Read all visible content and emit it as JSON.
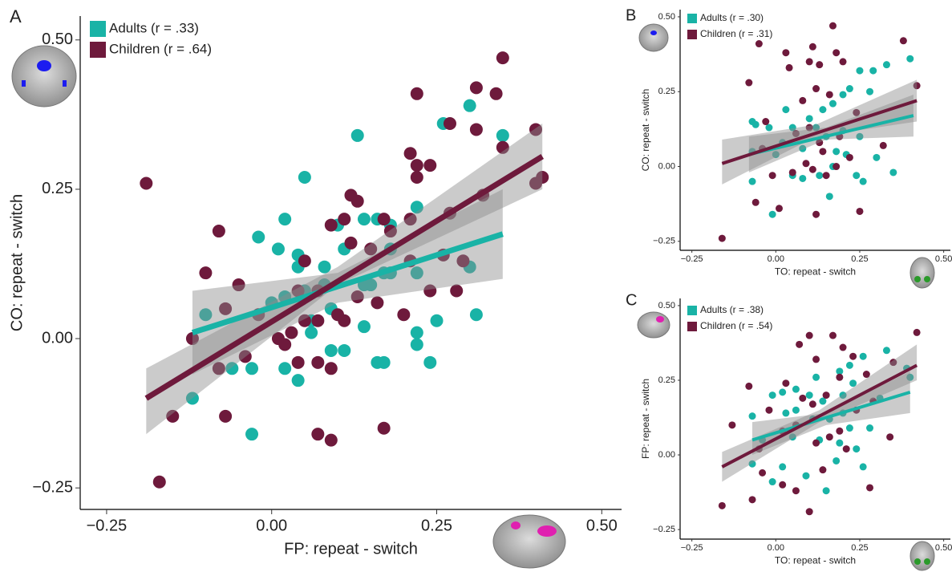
{
  "chart_data": [
    {
      "type": "scatter",
      "panel": "A",
      "x_label": "FP: repeat - switch",
      "y_label": "CO: repeat - switch",
      "xlim": [
        -0.29,
        0.53
      ],
      "ylim": [
        -0.286,
        0.54
      ],
      "xticks": [
        {
          "value": -0.25,
          "label": "−0.25"
        },
        {
          "value": 0,
          "label": "0.00"
        },
        {
          "value": 0.25,
          "label": "0.25"
        },
        {
          "value": 0.5,
          "label": "0.50"
        }
      ],
      "yticks": [
        {
          "value": -0.25,
          "label": "−0.25"
        },
        {
          "value": 0,
          "label": "0.00"
        },
        {
          "value": 0.25,
          "label": "0.25"
        },
        {
          "value": 0.5,
          "label": "0.50"
        }
      ],
      "series": [
        {
          "name": "Adults (r = .33)",
          "color": "#19b3a6",
          "x": [
            0.3,
            0.26,
            0.35,
            0.13,
            0.22,
            0.05,
            0.02,
            0.14,
            0.16,
            0.18,
            0.1,
            -0.02,
            0.01,
            0.04,
            0.11,
            0.18,
            0.04,
            0.08,
            0.3,
            0.22,
            0.17,
            -0.1,
            0.14,
            0.05,
            0.0,
            0.02,
            0.06,
            -0.03,
            0.02,
            0.04,
            0.06,
            0.09,
            0.11,
            0.14,
            0.16,
            0.17,
            0.22,
            0.22,
            0.24,
            0.25,
            0.31,
            0.18,
            -0.12,
            -0.03,
            0.09,
            0.08,
            0.15,
            -0.06
          ],
          "values": [
            0.39,
            0.36,
            0.34,
            0.34,
            0.22,
            0.27,
            0.2,
            0.2,
            0.2,
            0.19,
            0.19,
            0.17,
            0.15,
            0.14,
            0.15,
            0.15,
            0.12,
            0.12,
            0.12,
            0.11,
            0.11,
            0.04,
            0.09,
            0.08,
            0.06,
            0.07,
            0.03,
            -0.05,
            -0.05,
            -0.07,
            0.01,
            -0.02,
            -0.02,
            0.02,
            -0.04,
            -0.04,
            0.01,
            -0.01,
            -0.04,
            0.03,
            0.04,
            0.11,
            -0.1,
            -0.16,
            0.05,
            0.09,
            0.09,
            -0.05
          ],
          "fit": {
            "x": [
              -0.12,
              0.35
            ],
            "values": [
              0.01,
              0.175
            ]
          },
          "band": {
            "x": [
              -0.12,
              0.1,
              0.35
            ],
            "lower": [
              -0.06,
              0.06,
              0.1
            ],
            "upper": [
              0.08,
              0.11,
              0.25
            ]
          }
        },
        {
          "name": "Children (r = .64)",
          "color": "#6e1a3c",
          "x": [
            0.35,
            0.31,
            0.34,
            0.22,
            0.27,
            0.31,
            0.4,
            0.35,
            0.21,
            0.22,
            0.24,
            0.22,
            0.41,
            0.4,
            -0.19,
            0.32,
            0.12,
            0.13,
            0.27,
            0.21,
            0.11,
            0.09,
            0.17,
            0.18,
            -0.08,
            0.12,
            0.15,
            0.26,
            0.05,
            0.21,
            0.29,
            -0.1,
            -0.05,
            0.04,
            0.07,
            0.24,
            0.28,
            0.16,
            0.1,
            0.13,
            0.2,
            0.11,
            0.05,
            0.07,
            -0.07,
            -0.02,
            -0.12,
            0.02,
            0.04,
            0.07,
            0.09,
            -0.04,
            -0.08,
            -0.07,
            -0.15,
            0.07,
            0.09,
            0.17,
            -0.17,
            0.03,
            0.01
          ],
          "values": [
            0.47,
            0.42,
            0.41,
            0.41,
            0.36,
            0.35,
            0.35,
            0.32,
            0.31,
            0.29,
            0.29,
            0.27,
            0.27,
            0.26,
            0.26,
            0.24,
            0.24,
            0.23,
            0.21,
            0.2,
            0.2,
            0.19,
            0.2,
            0.18,
            0.18,
            0.16,
            0.15,
            0.14,
            0.13,
            0.13,
            0.13,
            0.11,
            0.09,
            0.08,
            0.08,
            0.08,
            0.08,
            0.06,
            0.04,
            0.07,
            0.04,
            0.03,
            0.03,
            0.03,
            0.05,
            0.04,
            0.0,
            -0.01,
            -0.04,
            -0.04,
            -0.05,
            -0.03,
            -0.05,
            -0.13,
            -0.13,
            -0.16,
            -0.17,
            -0.15,
            -0.24,
            0.01,
            0.0
          ],
          "fit": {
            "x": [
              -0.19,
              0.41
            ],
            "values": [
              -0.1,
              0.305
            ]
          },
          "band": {
            "x": [
              -0.19,
              0.1,
              0.41
            ],
            "lower": [
              -0.16,
              0.09,
              0.25
            ],
            "upper": [
              -0.05,
              0.12,
              0.36
            ]
          }
        }
      ]
    },
    {
      "type": "scatter",
      "panel": "B",
      "x_label": "TO: repeat - switch",
      "y_label": "CO: repeat - switch",
      "xlim": [
        -0.285,
        0.52
      ],
      "ylim": [
        -0.28,
        0.524
      ],
      "xticks": [
        {
          "value": -0.25,
          "label": "−0.25"
        },
        {
          "value": 0,
          "label": "0.00"
        },
        {
          "value": 0.25,
          "label": "0.25"
        },
        {
          "value": 0.5,
          "label": "0.50"
        }
      ],
      "yticks": [
        {
          "value": -0.25,
          "label": "−0.25"
        },
        {
          "value": 0,
          "label": "0.00"
        },
        {
          "value": 0.25,
          "label": "0.25"
        },
        {
          "value": 0.5,
          "label": "0.50"
        }
      ],
      "series": [
        {
          "name": "Adults (r = .30)",
          "color": "#19b3a6",
          "x": [
            0.4,
            0.33,
            0.29,
            0.25,
            0.22,
            0.2,
            0.28,
            0.17,
            0.14,
            0.1,
            0.03,
            -0.07,
            -0.06,
            -0.02,
            0.05,
            0.12,
            0.2,
            0.02,
            0.15,
            0.25,
            0.08,
            -0.07,
            0.18,
            0.0,
            0.21,
            0.3,
            -0.07,
            0.05,
            0.13,
            0.17,
            0.26,
            0.35,
            -0.01,
            0.08,
            0.24,
            0.16
          ],
          "values": [
            0.36,
            0.34,
            0.32,
            0.32,
            0.26,
            0.24,
            0.25,
            0.21,
            0.19,
            0.16,
            0.19,
            0.15,
            0.14,
            0.13,
            0.13,
            0.13,
            0.12,
            0.08,
            0.1,
            0.1,
            0.06,
            0.05,
            0.05,
            0.04,
            0.04,
            0.03,
            -0.05,
            -0.03,
            -0.03,
            0.0,
            -0.05,
            -0.02,
            -0.16,
            -0.04,
            -0.03,
            -0.1
          ],
          "fit": {
            "x": [
              -0.08,
              0.41
            ],
            "values": [
              0.04,
              0.17
            ]
          },
          "band": {
            "x": [
              -0.08,
              0.15,
              0.41
            ],
            "lower": [
              -0.02,
              0.09,
              0.1
            ],
            "upper": [
              0.1,
              0.13,
              0.24
            ]
          }
        },
        {
          "name": "Children (r = .31)",
          "color": "#6e1a3c",
          "x": [
            0.17,
            0.38,
            -0.05,
            0.11,
            0.03,
            0.18,
            0.1,
            0.13,
            0.04,
            0.2,
            -0.08,
            0.12,
            0.42,
            0.16,
            0.08,
            0.24,
            -0.03,
            0.1,
            0.13,
            0.19,
            0.06,
            -0.04,
            0.14,
            0.22,
            0.09,
            0.11,
            -0.01,
            0.15,
            -0.06,
            0.01,
            0.25,
            0.12,
            -0.16,
            0.32,
            0.05,
            0.18
          ],
          "values": [
            0.47,
            0.42,
            0.41,
            0.4,
            0.38,
            0.38,
            0.35,
            0.34,
            0.33,
            0.35,
            0.28,
            0.26,
            0.27,
            0.24,
            0.22,
            0.18,
            0.15,
            0.13,
            0.08,
            0.1,
            0.11,
            0.06,
            0.05,
            0.03,
            0.01,
            -0.01,
            -0.03,
            -0.03,
            -0.12,
            -0.14,
            -0.15,
            -0.16,
            -0.24,
            0.07,
            -0.02,
            0.0
          ],
          "fit": {
            "x": [
              -0.16,
              0.42
            ],
            "values": [
              0.01,
              0.22
            ]
          },
          "band": {
            "x": [
              -0.16,
              0.12,
              0.42
            ],
            "lower": [
              -0.06,
              0.1,
              0.15
            ],
            "upper": [
              0.09,
              0.14,
              0.29
            ]
          }
        }
      ]
    },
    {
      "type": "scatter",
      "panel": "C",
      "x_label": "TO: repeat - switch",
      "y_label": "FP: repeat - switch",
      "xlim": [
        -0.285,
        0.52
      ],
      "ylim": [
        -0.282,
        0.524
      ],
      "xticks": [
        {
          "value": -0.25,
          "label": "−0.25"
        },
        {
          "value": 0,
          "label": "0.00"
        },
        {
          "value": 0.25,
          "label": "0.25"
        },
        {
          "value": 0.5,
          "label": "0.50"
        }
      ],
      "yticks": [
        {
          "value": -0.25,
          "label": "−0.25"
        },
        {
          "value": 0,
          "label": "0.00"
        },
        {
          "value": 0.25,
          "label": "0.25"
        },
        {
          "value": 0.5,
          "label": "0.50"
        }
      ],
      "series": [
        {
          "name": "Adults (r = .38)",
          "color": "#19b3a6",
          "x": [
            0.39,
            0.33,
            0.26,
            0.4,
            0.22,
            0.19,
            0.12,
            0.23,
            0.06,
            0.02,
            -0.01,
            0.1,
            0.14,
            0.2,
            0.31,
            0.06,
            0.11,
            -0.07,
            0.03,
            0.16,
            0.22,
            0.28,
            -0.04,
            0.05,
            0.13,
            0.19,
            0.24,
            -0.07,
            0.02,
            0.09,
            0.18,
            0.15,
            -0.01,
            0.26,
            0.2
          ],
          "values": [
            0.29,
            0.35,
            0.33,
            0.26,
            0.3,
            0.28,
            0.26,
            0.24,
            0.22,
            0.21,
            0.2,
            0.2,
            0.18,
            0.2,
            0.19,
            0.15,
            0.12,
            0.13,
            0.14,
            0.12,
            0.09,
            0.09,
            0.05,
            0.06,
            0.05,
            0.04,
            0.02,
            -0.03,
            -0.04,
            -0.07,
            -0.02,
            -0.12,
            -0.09,
            -0.04,
            0.14
          ],
          "fit": {
            "x": [
              -0.07,
              0.4
            ],
            "values": [
              0.05,
              0.21
            ]
          },
          "band": {
            "x": [
              -0.07,
              0.15,
              0.4
            ],
            "lower": [
              0.0,
              0.1,
              0.14
            ],
            "upper": [
              0.11,
              0.14,
              0.28
            ]
          }
        },
        {
          "name": "Children (r = .54)",
          "color": "#6e1a3c",
          "x": [
            0.42,
            0.1,
            0.17,
            0.07,
            0.2,
            0.23,
            0.12,
            -0.08,
            0.03,
            0.19,
            0.27,
            0.35,
            0.15,
            0.08,
            0.11,
            0.29,
            -0.02,
            0.24,
            0.06,
            -0.13,
            0.02,
            0.19,
            0.34,
            -0.05,
            0.12,
            0.21,
            -0.04,
            0.02,
            0.14,
            -0.07,
            0.1,
            0.28,
            -0.16,
            0.06,
            0.16
          ],
          "values": [
            0.41,
            0.4,
            0.4,
            0.37,
            0.36,
            0.33,
            0.32,
            0.23,
            0.24,
            0.26,
            0.27,
            0.31,
            0.2,
            0.19,
            0.17,
            0.18,
            0.15,
            0.15,
            0.1,
            0.1,
            0.08,
            0.08,
            0.06,
            0.02,
            0.04,
            0.02,
            -0.06,
            -0.1,
            -0.05,
            -0.15,
            -0.19,
            -0.11,
            -0.17,
            -0.12,
            0.06
          ],
          "fit": {
            "x": [
              -0.16,
              0.42
            ],
            "values": [
              -0.04,
              0.3
            ]
          },
          "band": {
            "x": [
              -0.16,
              0.13,
              0.42
            ],
            "lower": [
              -0.09,
              0.11,
              0.25
            ],
            "upper": [
              0.01,
              0.15,
              0.37
            ]
          }
        }
      ]
    }
  ]
}
